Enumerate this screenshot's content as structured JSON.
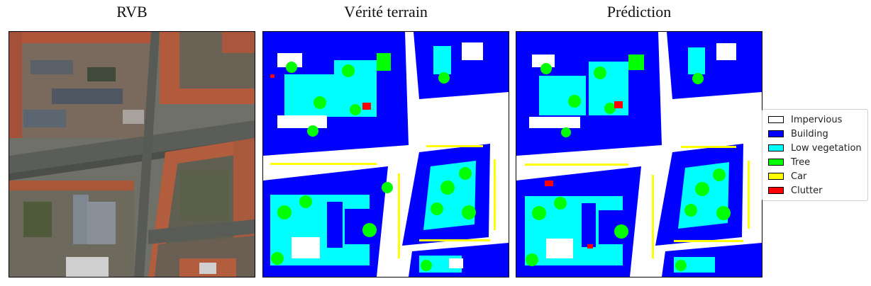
{
  "panels": [
    {
      "title": "RVB"
    },
    {
      "title": "Vérité terrain"
    },
    {
      "title": "Prédiction"
    }
  ],
  "legend": [
    {
      "label": "Impervious",
      "color": "#ffffff"
    },
    {
      "label": "Building",
      "color": "#0000ff"
    },
    {
      "label": "Low vegetation",
      "color": "#00ffff"
    },
    {
      "label": "Tree",
      "color": "#00ff00"
    },
    {
      "label": "Car",
      "color": "#ffff00"
    },
    {
      "label": "Clutter",
      "color": "#ff0000"
    }
  ]
}
